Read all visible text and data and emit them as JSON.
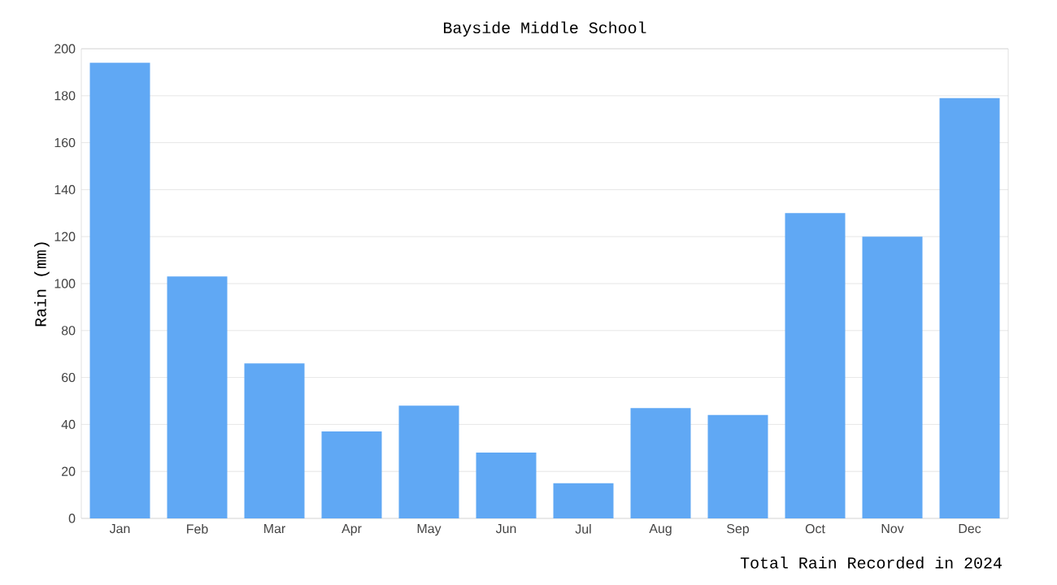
{
  "chart_data": {
    "type": "bar",
    "title": "Bayside Middle School",
    "xlabel": "Total Rain Recorded in 2024",
    "ylabel": "Rain (mm)",
    "categories": [
      "Jan",
      "Feb",
      "Mar",
      "Apr",
      "May",
      "Jun",
      "Jul",
      "Aug",
      "Sep",
      "Oct",
      "Nov",
      "Dec"
    ],
    "values": [
      194,
      103,
      66,
      37,
      48,
      28,
      15,
      47,
      44,
      130,
      120,
      179
    ],
    "color": "#60a8f4",
    "ylim": [
      0,
      200
    ],
    "yticks": [
      0,
      20,
      40,
      60,
      80,
      100,
      120,
      140,
      160,
      180,
      200
    ],
    "grid": "y"
  }
}
